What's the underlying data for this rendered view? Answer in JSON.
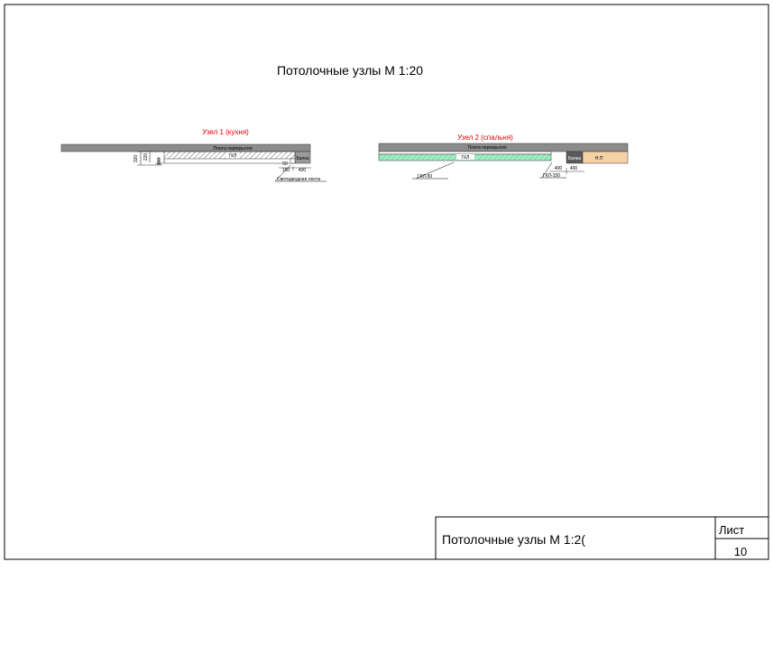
{
  "drawing": {
    "title": "Потолочные узлы М 1:20",
    "node1": {
      "title": "Узел 1 (кухня)",
      "slab_label": "Плита перекрытия",
      "beam_label": "Балка",
      "gkl_label": "ГКЛ",
      "dim_320": "320",
      "dim_220": "220",
      "dim_100": "100",
      "dim_50": "50",
      "dim_150": "150",
      "dim_400": "400",
      "led_label": "Светодиодная лента"
    },
    "node2": {
      "title": "Узел 2 (спальня)",
      "slab_label": "Плита перекрытия",
      "gkl_label": "ГКЛ",
      "beam_label": "Балка",
      "np_label": "Н.П",
      "dim_400a": "400",
      "dim_400b": "400",
      "gkl50_label": "ГКЛ-50",
      "gkl150_label": "ГКЛ-150"
    },
    "colors": {
      "title_red": "#e00000",
      "slab_gray": "#8c8c8c",
      "beam_dark": "#5a5a5a",
      "gkl_green": "#9ff0c4",
      "np_peach": "#f5d2a6"
    }
  },
  "title_block": {
    "name": "Потолочные узлы М 1:2(",
    "sheet_label": "Лист",
    "sheet_number": "10"
  }
}
